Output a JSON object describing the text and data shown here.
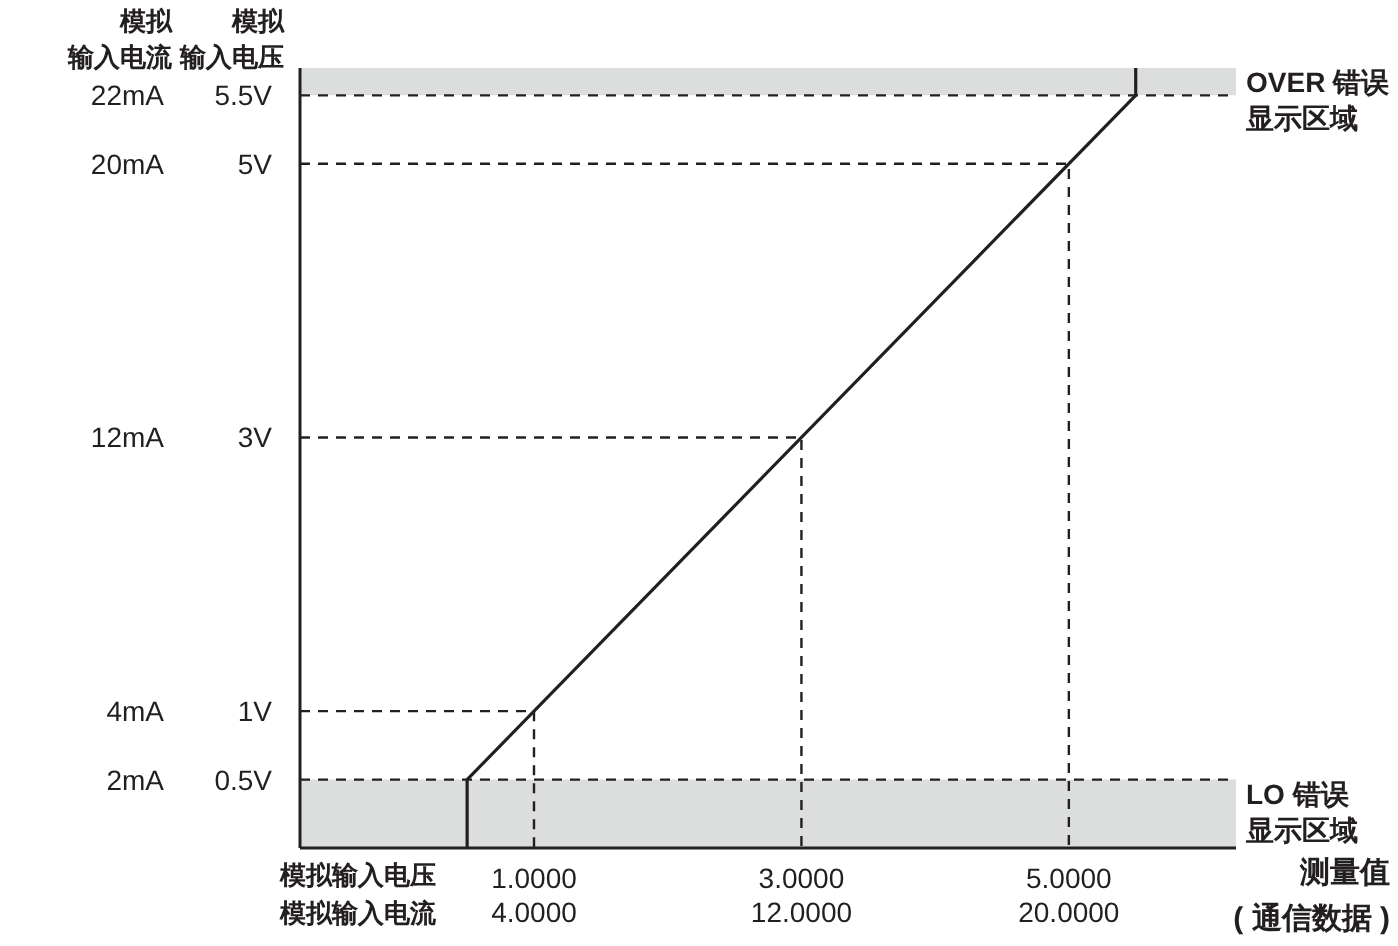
{
  "chart_data": {
    "type": "line",
    "ylabel": "模拟输入电压",
    "y2label": "模拟输入电流",
    "xlabel": "模拟输入电压",
    "x2label": "模拟输入电流",
    "annotations": [
      "测量值( 通信数据 )"
    ],
    "xlim": [
      -0.75,
      6.25
    ],
    "xticks": [
      {
        "value": 1,
        "label": "1.0000"
      },
      {
        "value": 3,
        "label": "3.0000"
      },
      {
        "value": 5,
        "label": "5.0000"
      }
    ],
    "x2lim": [
      -3,
      25
    ],
    "x2ticks": [
      {
        "value": 4,
        "label": "4.0000"
      },
      {
        "value": 12,
        "label": "12.0000"
      },
      {
        "value": 20,
        "label": "20.0000"
      }
    ],
    "ylim": [
      0,
      5.7
    ],
    "yticks": [
      {
        "value": 0.5,
        "label": "0.5V"
      },
      {
        "value": 1,
        "label": "1V"
      },
      {
        "value": 3,
        "label": "3V"
      },
      {
        "value": 5,
        "label": "5V"
      },
      {
        "value": 5.5,
        "label": "5.5V"
      }
    ],
    "y2lim": [
      0,
      22.8
    ],
    "y2ticks": [
      {
        "value": 2,
        "label": "2mA"
      },
      {
        "value": 4,
        "label": "4mA"
      },
      {
        "value": 12,
        "label": "12mA"
      },
      {
        "value": 20,
        "label": "20mA"
      },
      {
        "value": 22,
        "label": "22mA"
      }
    ],
    "marker": "none",
    "bands": [
      {
        "axis": "y",
        "from": 0,
        "to": 0.5,
        "label": "LO 错误显示区域",
        "color": "#dcdddd"
      },
      {
        "axis": "y",
        "from": 5.5,
        "to": 5.7,
        "label": "OVER 错误显示区域",
        "color": "#dcdddd"
      }
    ],
    "ref_lines": [
      {
        "axis": "y",
        "value": 0.5,
        "color": "#231f20",
        "line_style": "dashed"
      },
      {
        "axis": "y",
        "value": 5.5,
        "color": "#231f20",
        "line_style": "dashed"
      }
    ],
    "series": [
      {
        "color": "#231f20",
        "line_style": "solid",
        "x": [
          0.5,
          0.5,
          5.5,
          5.5
        ],
        "values": [
          0,
          0.5,
          5.5,
          5.7
        ]
      },
      {
        "color": "#231f20",
        "line_style": "dashed",
        "x": [
          -0.75,
          1,
          1
        ],
        "values": [
          1,
          1,
          0
        ]
      },
      {
        "color": "#231f20",
        "line_style": "dashed",
        "x": [
          -0.75,
          3,
          3
        ],
        "values": [
          3,
          3,
          0
        ]
      },
      {
        "color": "#231f20",
        "line_style": "dashed",
        "x": [
          -0.75,
          5,
          5
        ],
        "values": [
          5,
          5,
          0
        ]
      }
    ]
  }
}
